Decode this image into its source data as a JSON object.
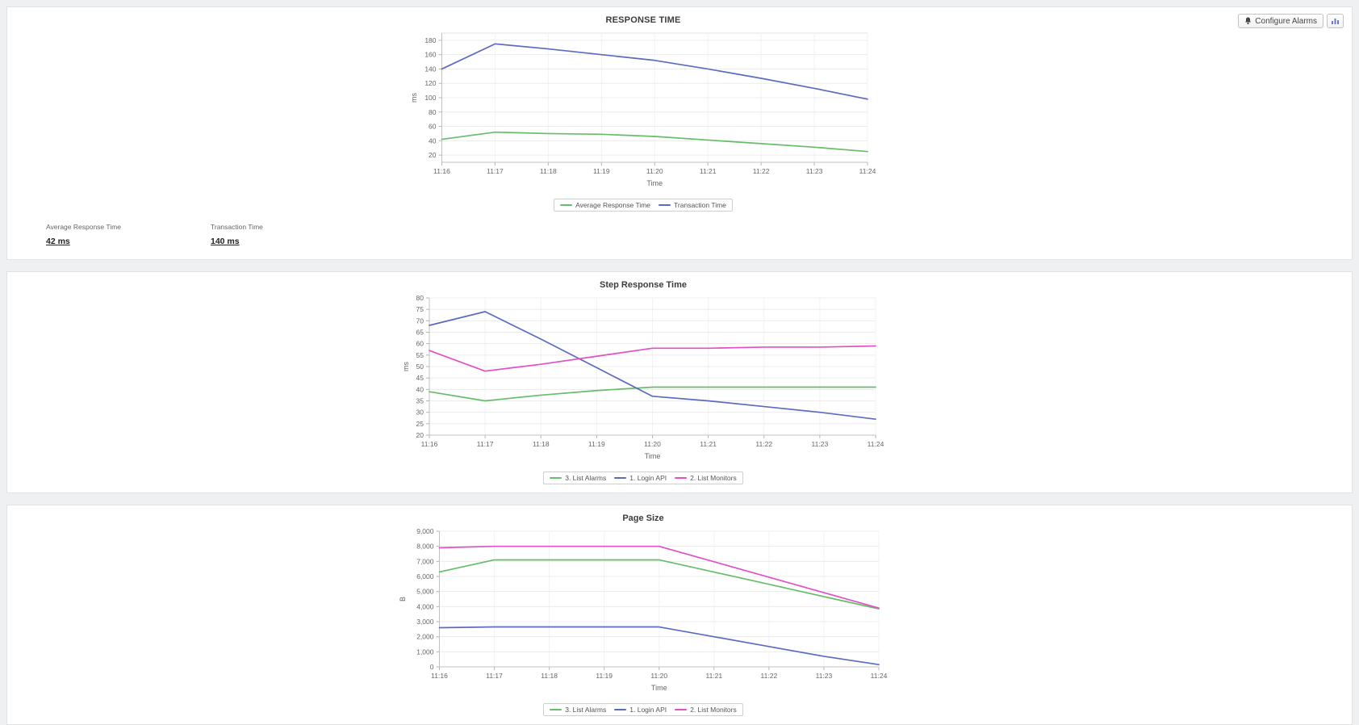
{
  "toolbar": {
    "configure_alarms": "Configure Alarms"
  },
  "stats": [
    {
      "label": "Average Response Time",
      "value": "42 ms"
    },
    {
      "label": "Transaction Time",
      "value": "140 ms"
    }
  ],
  "chart_data": [
    {
      "type": "line",
      "title": "RESPONSE TIME",
      "xlabel": "Time",
      "ylabel": "ms",
      "grid": true,
      "legend_position": "bottom",
      "x": [
        "11:16",
        "11:17",
        "11:18",
        "11:19",
        "11:20",
        "11:21",
        "11:22",
        "11:23",
        "11:24"
      ],
      "ylim": [
        10,
        190
      ],
      "yticks": [
        20,
        40,
        60,
        80,
        100,
        120,
        140,
        160,
        180
      ],
      "series": [
        {
          "name": "Average Response Time",
          "color": "#67bd6a",
          "values": [
            42,
            52,
            50,
            49,
            46,
            41,
            36,
            31,
            25
          ]
        },
        {
          "name": "Transaction Time",
          "color": "#5c6bc0",
          "values": [
            140,
            175,
            168,
            160,
            152,
            140,
            127,
            113,
            98
          ]
        }
      ]
    },
    {
      "type": "line",
      "title": "Step Response Time",
      "xlabel": "Time",
      "ylabel": "ms",
      "grid": true,
      "legend_position": "bottom",
      "x": [
        "11:16",
        "11:17",
        "11:18",
        "11:19",
        "11:20",
        "11:21",
        "11:22",
        "11:23",
        "11:24"
      ],
      "ylim": [
        20,
        80
      ],
      "yticks": [
        20,
        25,
        30,
        35,
        40,
        45,
        50,
        55,
        60,
        65,
        70,
        75,
        80
      ],
      "series": [
        {
          "name": "3. List Alarms",
          "color": "#67bd6a",
          "values": [
            39,
            35,
            37.5,
            39.5,
            41,
            41,
            41,
            41,
            41
          ]
        },
        {
          "name": "1. Login API",
          "color": "#5c6bc0",
          "values": [
            68,
            74,
            62,
            49.5,
            37,
            35,
            32.5,
            30,
            27
          ]
        },
        {
          "name": "2. List Monitors",
          "color": "#e151c4",
          "values": [
            57,
            48,
            51,
            54.5,
            58,
            58,
            58.5,
            58.5,
            59
          ]
        }
      ]
    },
    {
      "type": "line",
      "title": "Page Size",
      "xlabel": "Time",
      "ylabel": "B",
      "grid": true,
      "legend_position": "bottom",
      "x": [
        "11:16",
        "11:17",
        "11:18",
        "11:19",
        "11:20",
        "11:21",
        "11:22",
        "11:23",
        "11:24"
      ],
      "ylim": [
        0,
        9000
      ],
      "yticks": [
        0,
        1000,
        2000,
        3000,
        4000,
        5000,
        6000,
        7000,
        8000,
        9000
      ],
      "series": [
        {
          "name": "3. List Alarms",
          "color": "#67bd6a",
          "values": [
            6300,
            7100,
            7100,
            7100,
            7100,
            6290,
            5480,
            4660,
            3850
          ]
        },
        {
          "name": "1. Login API",
          "color": "#5c6bc0",
          "values": [
            2600,
            2650,
            2650,
            2650,
            2650,
            2000,
            1350,
            700,
            150
          ]
        },
        {
          "name": "2. List Monitors",
          "color": "#e151c4",
          "values": [
            7900,
            8000,
            8000,
            8000,
            8000,
            6975,
            5950,
            4925,
            3900
          ]
        }
      ]
    }
  ]
}
